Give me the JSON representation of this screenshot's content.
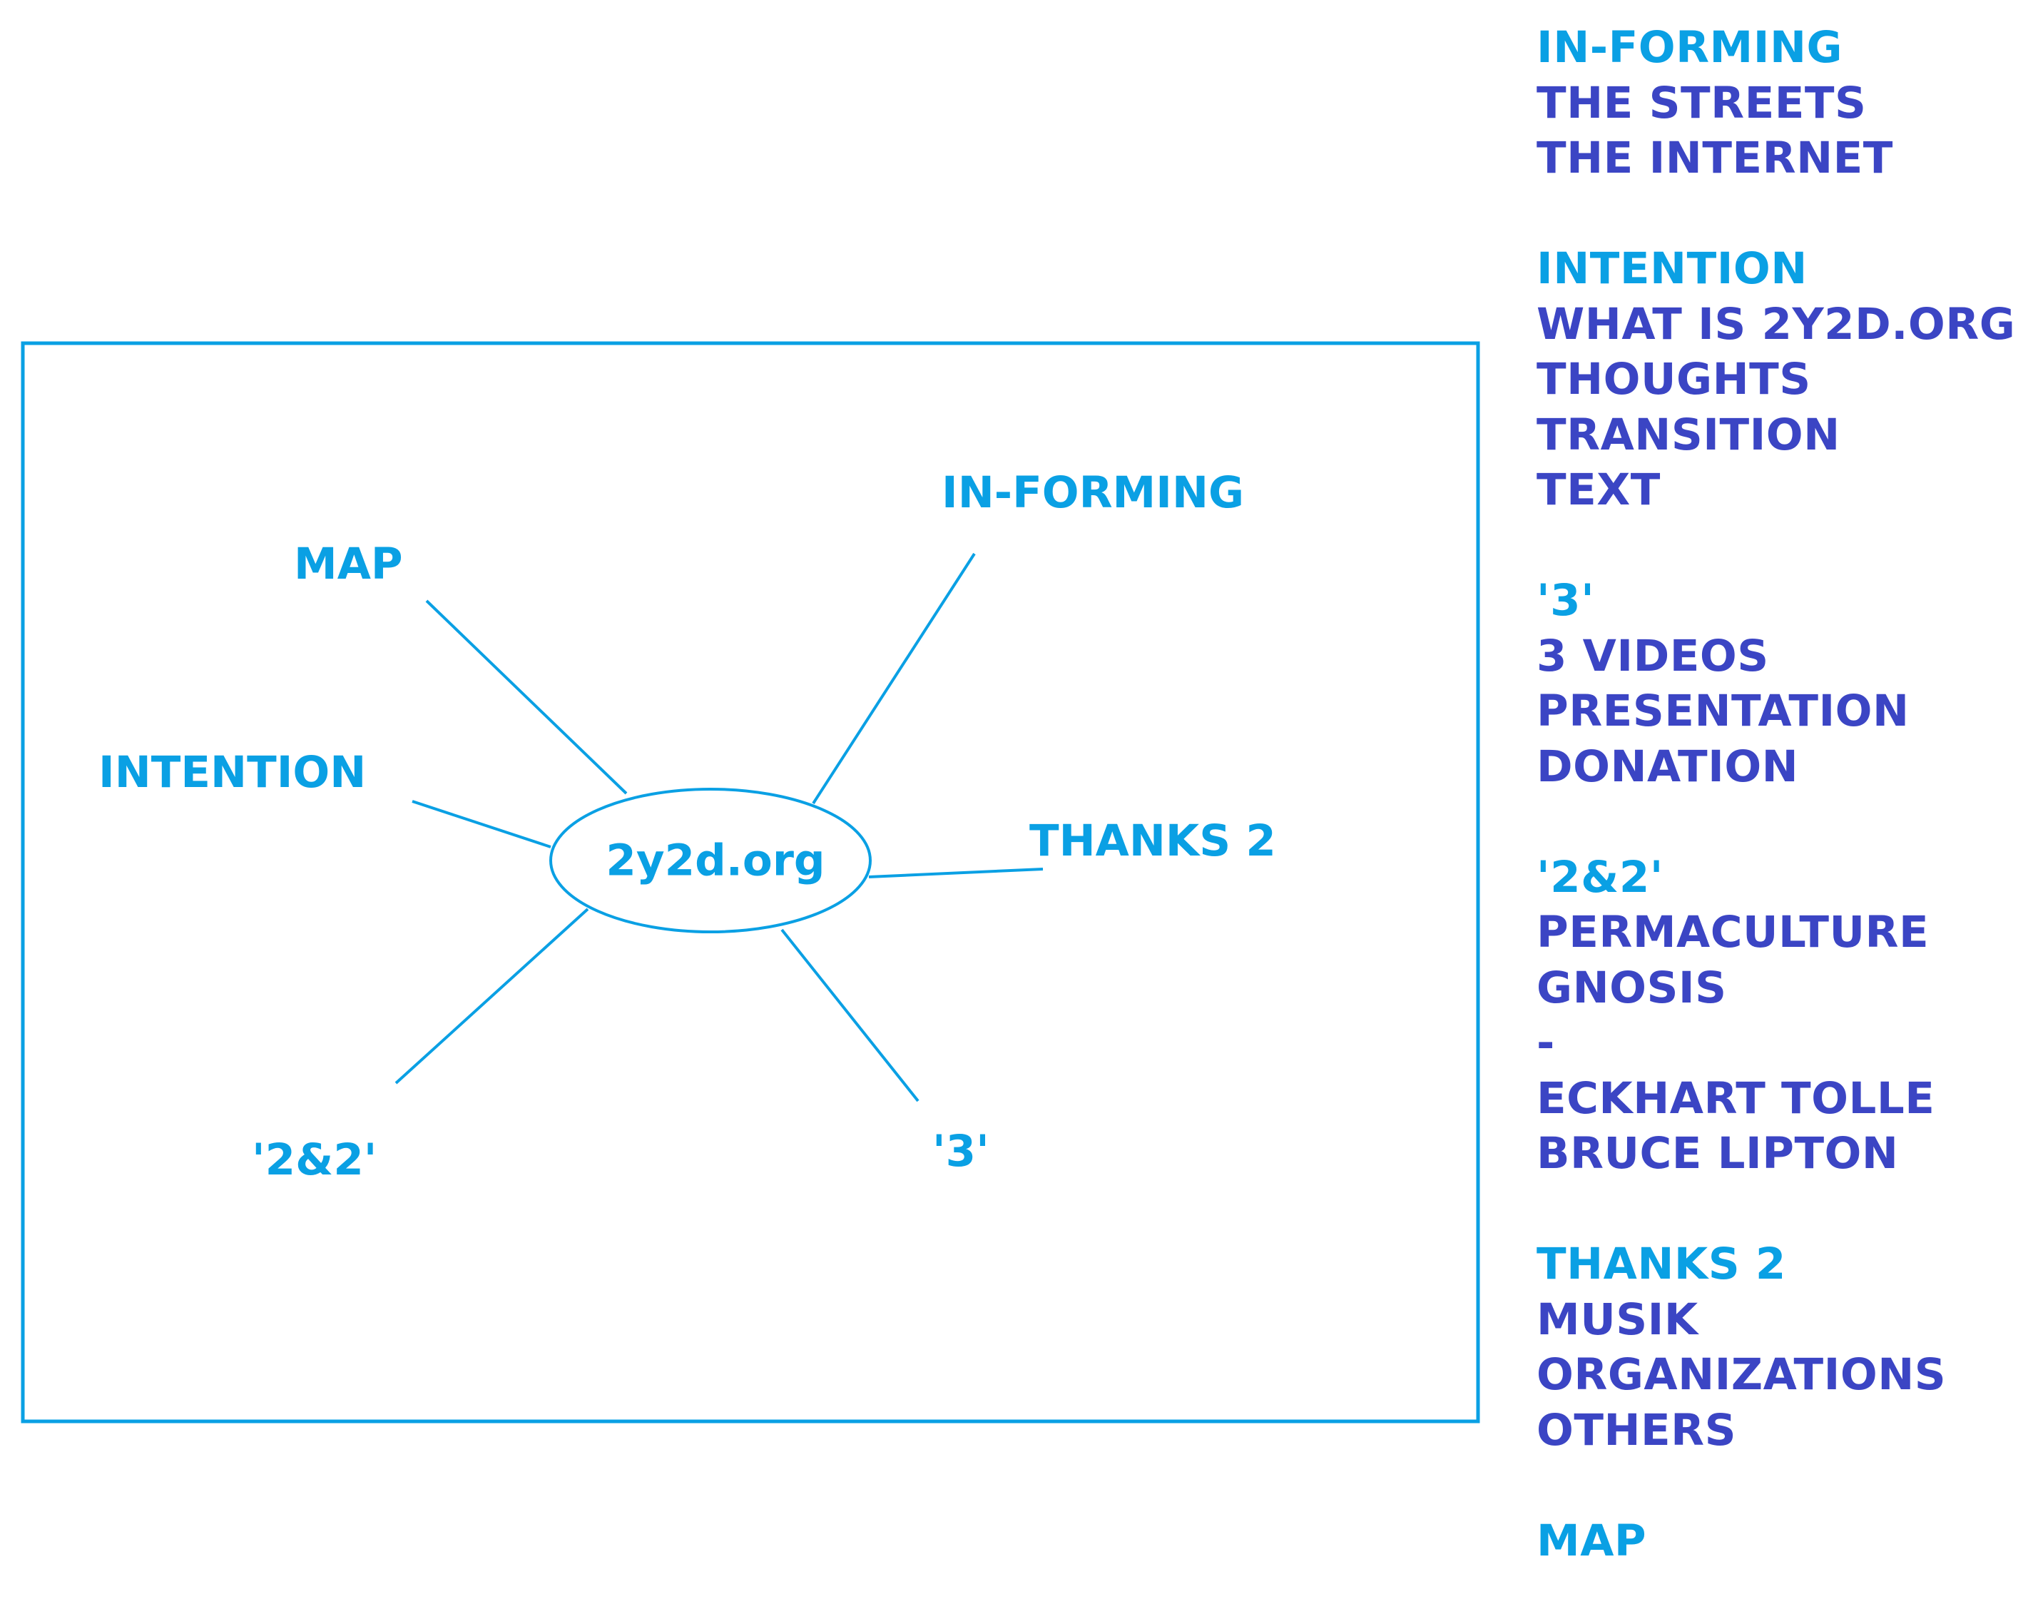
{
  "colors": {
    "accent": "#0aa0e4",
    "link": "#3b45c4",
    "background": "#ffffff"
  },
  "diagram": {
    "center_label": "2y2d.org",
    "nodes": [
      {
        "id": "informing",
        "label": "IN-FORMING"
      },
      {
        "id": "map",
        "label": "MAP"
      },
      {
        "id": "intention",
        "label": "INTENTION"
      },
      {
        "id": "thanks2",
        "label": "THANKS 2"
      },
      {
        "id": "twoandtwo",
        "label": "'2&2'"
      },
      {
        "id": "three",
        "label": "'3'"
      }
    ]
  },
  "sidebar": {
    "sections": [
      {
        "title": "IN-FORMING",
        "items": [
          "THE STREETS",
          "THE INTERNET"
        ]
      },
      {
        "title": "INTENTION",
        "items": [
          "WHAT IS 2Y2D.ORG",
          "THOUGHTS",
          "TRANSITION",
          "TEXT"
        ]
      },
      {
        "title": "'3'",
        "items": [
          "3 VIDEOS",
          "PRESENTATION",
          "DONATION"
        ]
      },
      {
        "title": "'2&2'",
        "items": [
          "PERMACULTURE",
          "GNOSIS",
          "-",
          "ECKHART TOLLE",
          "BRUCE LIPTON"
        ]
      },
      {
        "title": "THANKS 2",
        "items": [
          "MUSIK",
          "ORGANIZATIONS",
          "OTHERS"
        ]
      },
      {
        "title": "MAP",
        "items": []
      }
    ]
  }
}
